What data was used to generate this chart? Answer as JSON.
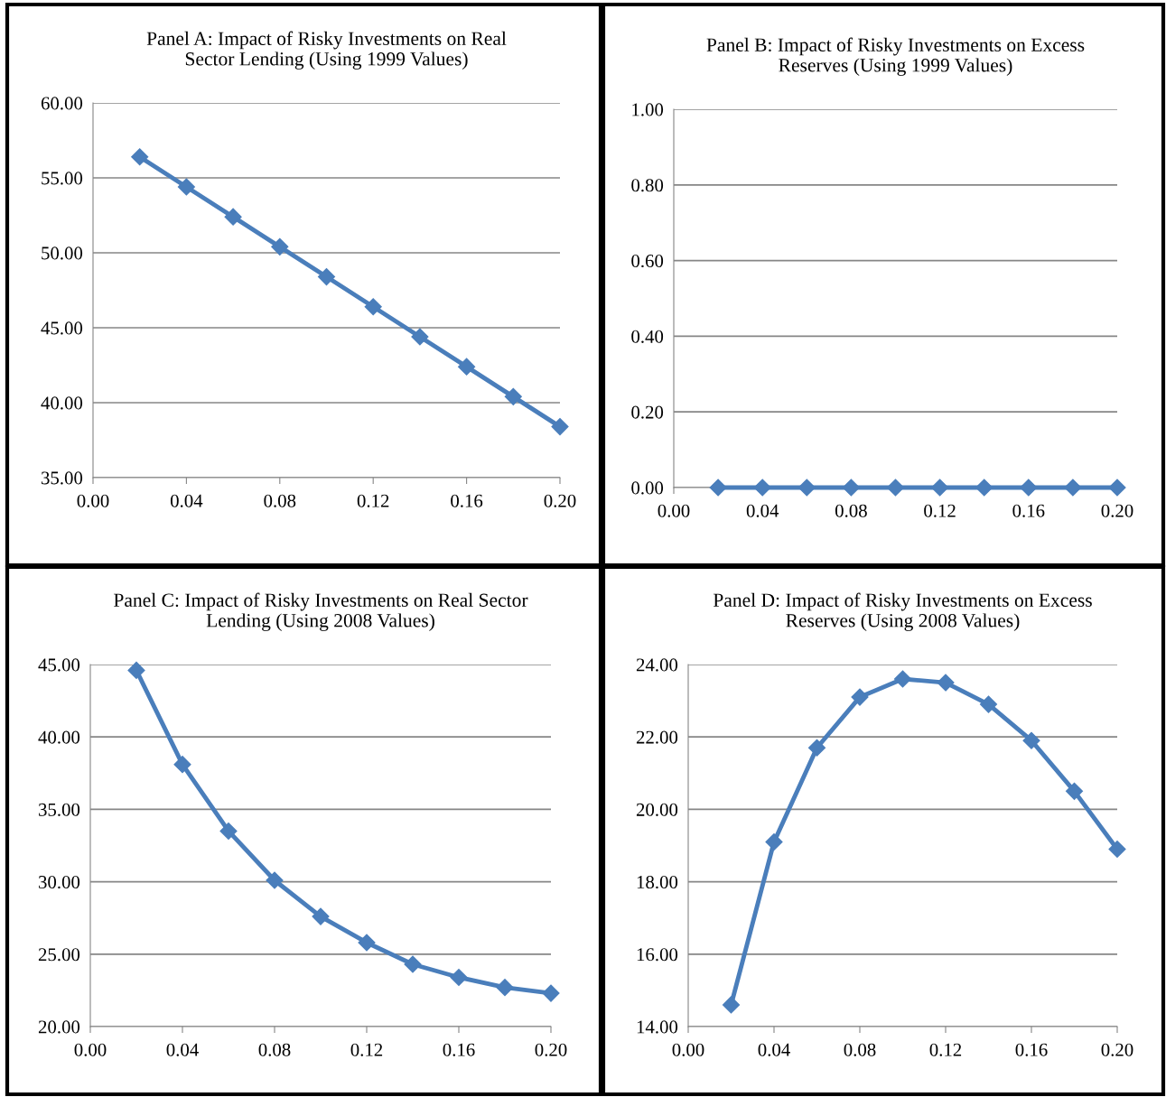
{
  "chart_data": [
    {
      "type": "line",
      "title": "Panel A: Impact of Risky Investments on Real\nSector Lending (Using 1999 Values)",
      "x": [
        0.02,
        0.04,
        0.06,
        0.08,
        0.1,
        0.12,
        0.14,
        0.16,
        0.18,
        0.2
      ],
      "series": [
        {
          "color": "#4a7ebb",
          "values": [
            56.4,
            54.4,
            52.4,
            50.4,
            48.4,
            46.4,
            44.4,
            42.4,
            40.4,
            38.4
          ]
        }
      ],
      "xlim": [
        0,
        0.2
      ],
      "xticks": [
        {
          "value": 0,
          "label": "0.00"
        },
        {
          "value": 0.04,
          "label": "0.04"
        },
        {
          "value": 0.08,
          "label": "0.08"
        },
        {
          "value": 0.12,
          "label": "0.12"
        },
        {
          "value": 0.16,
          "label": "0.16"
        },
        {
          "value": 0.2,
          "label": "0.20"
        }
      ],
      "ylim": [
        35,
        60
      ],
      "yticks": [
        {
          "value": 35,
          "label": "35.00"
        },
        {
          "value": 40,
          "label": "40.00"
        },
        {
          "value": 45,
          "label": "45.00"
        },
        {
          "value": 50,
          "label": "50.00"
        },
        {
          "value": 55,
          "label": "55.00"
        },
        {
          "value": 60,
          "label": "60.00"
        }
      ],
      "grid": "y",
      "marker": "diamond",
      "line_style": "solid",
      "legend": false
    },
    {
      "type": "line",
      "title": "Panel B: Impact of Risky Investments on Excess\nReserves (Using 1999 Values)",
      "x": [
        0.02,
        0.04,
        0.06,
        0.08,
        0.1,
        0.12,
        0.14,
        0.16,
        0.18,
        0.2
      ],
      "series": [
        {
          "color": "#4a7ebb",
          "values": [
            0,
            0,
            0,
            0,
            0,
            0,
            0,
            0,
            0,
            0
          ]
        }
      ],
      "xlim": [
        0,
        0.2
      ],
      "xticks": [
        {
          "value": 0,
          "label": "0.00"
        },
        {
          "value": 0.04,
          "label": "0.04"
        },
        {
          "value": 0.08,
          "label": "0.08"
        },
        {
          "value": 0.12,
          "label": "0.12"
        },
        {
          "value": 0.16,
          "label": "0.16"
        },
        {
          "value": 0.2,
          "label": "0.20"
        }
      ],
      "ylim": [
        0,
        1
      ],
      "yticks": [
        {
          "value": 0,
          "label": "0.00"
        },
        {
          "value": 0.2,
          "label": "0.20"
        },
        {
          "value": 0.4,
          "label": "0.40"
        },
        {
          "value": 0.6,
          "label": "0.60"
        },
        {
          "value": 0.8,
          "label": "0.80"
        },
        {
          "value": 1,
          "label": "1.00"
        }
      ],
      "grid": "y",
      "marker": "diamond",
      "line_style": "solid",
      "legend": false
    },
    {
      "type": "line",
      "title": "Panel C: Impact of Risky Investments on Real Sector\nLending (Using 2008 Values)",
      "x": [
        0.02,
        0.04,
        0.06,
        0.08,
        0.1,
        0.12,
        0.14,
        0.16,
        0.18,
        0.2
      ],
      "series": [
        {
          "color": "#4a7ebb",
          "values": [
            44.6,
            38.1,
            33.5,
            30.1,
            27.6,
            25.8,
            24.3,
            23.4,
            22.7,
            22.3
          ]
        }
      ],
      "xlim": [
        0,
        0.2
      ],
      "xticks": [
        {
          "value": 0,
          "label": "0.00"
        },
        {
          "value": 0.04,
          "label": "0.04"
        },
        {
          "value": 0.08,
          "label": "0.08"
        },
        {
          "value": 0.12,
          "label": "0.12"
        },
        {
          "value": 0.16,
          "label": "0.16"
        },
        {
          "value": 0.2,
          "label": "0.20"
        }
      ],
      "ylim": [
        20,
        45
      ],
      "yticks": [
        {
          "value": 20,
          "label": "20.00"
        },
        {
          "value": 25,
          "label": "25.00"
        },
        {
          "value": 30,
          "label": "30.00"
        },
        {
          "value": 35,
          "label": "35.00"
        },
        {
          "value": 40,
          "label": "40.00"
        },
        {
          "value": 45,
          "label": "45.00"
        }
      ],
      "grid": "y",
      "marker": "diamond",
      "line_style": "solid",
      "legend": false
    },
    {
      "type": "line",
      "title": "Panel D: Impact of Risky Investments on Excess\nReserves (Using 2008 Values)",
      "x": [
        0.02,
        0.04,
        0.06,
        0.08,
        0.1,
        0.12,
        0.14,
        0.16,
        0.18,
        0.2
      ],
      "series": [
        {
          "color": "#4a7ebb",
          "values": [
            14.6,
            19.1,
            21.7,
            23.1,
            23.6,
            23.5,
            22.9,
            21.9,
            20.5,
            18.9
          ]
        }
      ],
      "xlim": [
        0,
        0.2
      ],
      "xticks": [
        {
          "value": 0,
          "label": "0.00"
        },
        {
          "value": 0.04,
          "label": "0.04"
        },
        {
          "value": 0.08,
          "label": "0.08"
        },
        {
          "value": 0.12,
          "label": "0.12"
        },
        {
          "value": 0.16,
          "label": "0.16"
        },
        {
          "value": 0.2,
          "label": "0.20"
        }
      ],
      "ylim": [
        14,
        24
      ],
      "yticks": [
        {
          "value": 14,
          "label": "14.00"
        },
        {
          "value": 16,
          "label": "16.00"
        },
        {
          "value": 18,
          "label": "18.00"
        },
        {
          "value": 20,
          "label": "20.00"
        },
        {
          "value": 22,
          "label": "22.00"
        },
        {
          "value": 24,
          "label": "24.00"
        }
      ],
      "grid": "y",
      "marker": "diamond",
      "line_style": "solid",
      "legend": false
    }
  ]
}
